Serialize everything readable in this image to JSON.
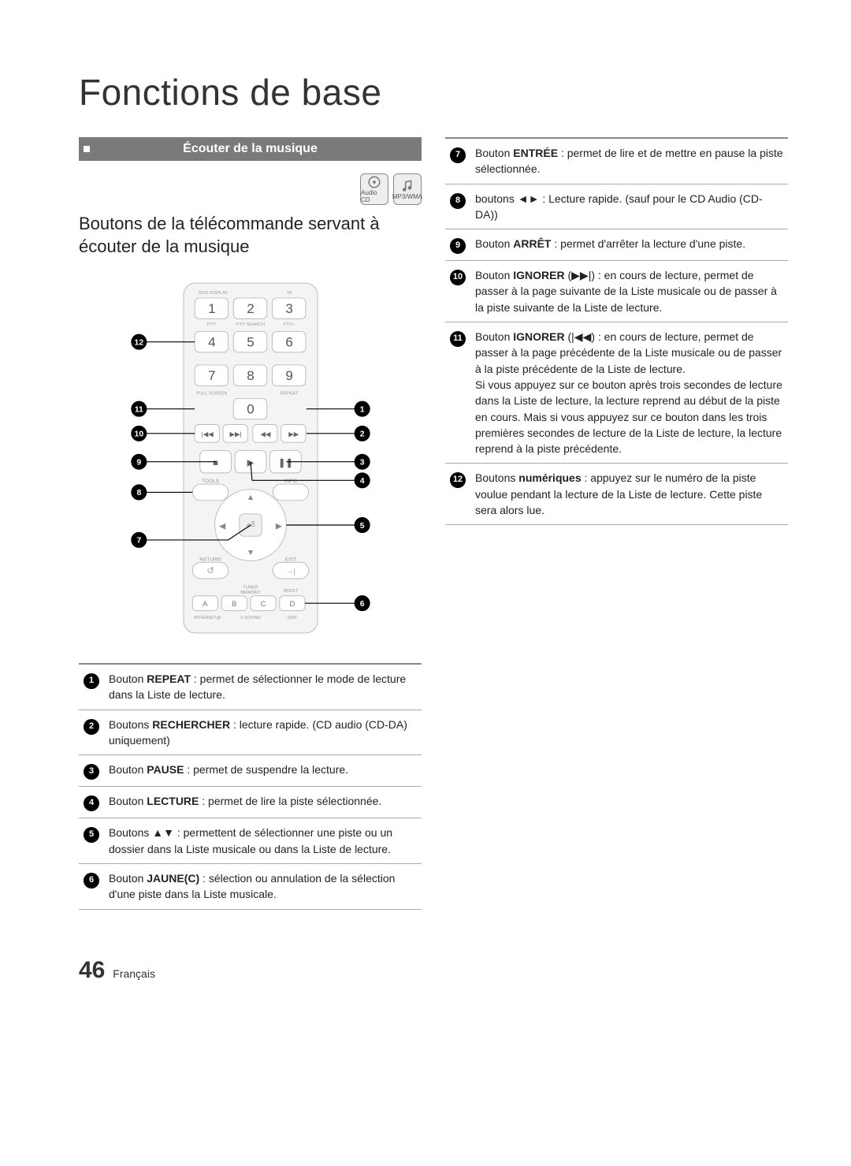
{
  "page": {
    "title": "Fonctions de base",
    "number": "46",
    "lang_label": "Français"
  },
  "band": {
    "label": "Écouter de la musique"
  },
  "icons": {
    "audio_label": "Audio CD",
    "mp3_label": "MP3/WMA"
  },
  "subheading": "Boutons de la télécommande servant à écouter de la musique",
  "remote": {
    "num_labels": [
      "1",
      "2",
      "3",
      "4",
      "5",
      "6",
      "7",
      "8",
      "9",
      "0"
    ],
    "small_labels": {
      "rds": "RDS DISPLAY",
      "ta": "TA",
      "pty_minus": "PTY-",
      "pty_search": "PTY SEARCH",
      "pty_plus": "PTY+",
      "fullscreen": "FULL SCREEN",
      "repeat": "REPEAT",
      "tools": "TOOLS",
      "info": "INFO",
      "return": "RETURN",
      "exit": "EXIT",
      "tuner": "TUNER",
      "memory": "MEMORY",
      "molist": "MO/ST",
      "a": "A",
      "b": "B",
      "c": "C",
      "d": "D",
      "internet": "INTERNET@",
      "vsound": "V-SOUND",
      "dsp": "DSP"
    },
    "callouts_right": [
      "1",
      "2",
      "3",
      "4",
      "5",
      "6"
    ],
    "callouts_left": [
      "12",
      "11",
      "10",
      "9",
      "8",
      "7"
    ]
  },
  "left_table": [
    {
      "n": "1",
      "html": "Bouton <b>REPEAT</b> : permet de sélectionner le mode de lecture dans la Liste de lecture."
    },
    {
      "n": "2",
      "html": "Boutons <b>RECHERCHER</b> : lecture rapide. (CD audio (CD-DA) uniquement)"
    },
    {
      "n": "3",
      "html": "Bouton <b>PAUSE</b> : permet de suspendre la lecture."
    },
    {
      "n": "4",
      "html": "Bouton <b>LECTURE</b> : permet de lire la piste sélectionnée."
    },
    {
      "n": "5",
      "html": "Boutons ▲▼ : permettent de sélectionner une piste ou un dossier dans la Liste musicale ou dans la Liste de lecture."
    },
    {
      "n": "6",
      "html": "Bouton <b>JAUNE(C)</b> : sélection ou annulation de la sélection d'une piste dans la Liste musicale."
    }
  ],
  "right_table": [
    {
      "n": "7",
      "html": "Bouton <b>ENTRÉE</b> : permet de lire et de mettre en pause la piste sélectionnée."
    },
    {
      "n": "8",
      "html": "boutons ◄► : Lecture rapide. (sauf pour le CD Audio (CD-DA))"
    },
    {
      "n": "9",
      "html": "Bouton <b>ARRÊT</b> : permet d'arrêter la lecture d'une piste."
    },
    {
      "n": "10",
      "html": "Bouton <b>IGNORER</b> (▶▶|) : en cours de lecture, permet de passer à la page suivante de la Liste musicale ou de passer à la piste suivante de la Liste de lecture."
    },
    {
      "n": "11",
      "html": "Bouton <b>IGNORER</b> (|◀◀) : en cours de lecture, permet de passer à la page précédente de la Liste musicale ou de passer à la piste précédente de la Liste de lecture.<br>Si vous appuyez sur ce bouton après trois secondes de lecture dans la Liste de lecture, la lecture reprend au début de la piste en cours. Mais si vous appuyez sur ce bouton dans les trois premières secondes de lecture de la Liste de lecture, la lecture reprend à la piste précédente."
    },
    {
      "n": "12",
      "html": "Boutons <b>numériques</b> : appuyez sur le numéro de la piste voulue pendant la lecture de la Liste de lecture. Cette piste sera alors lue."
    }
  ]
}
